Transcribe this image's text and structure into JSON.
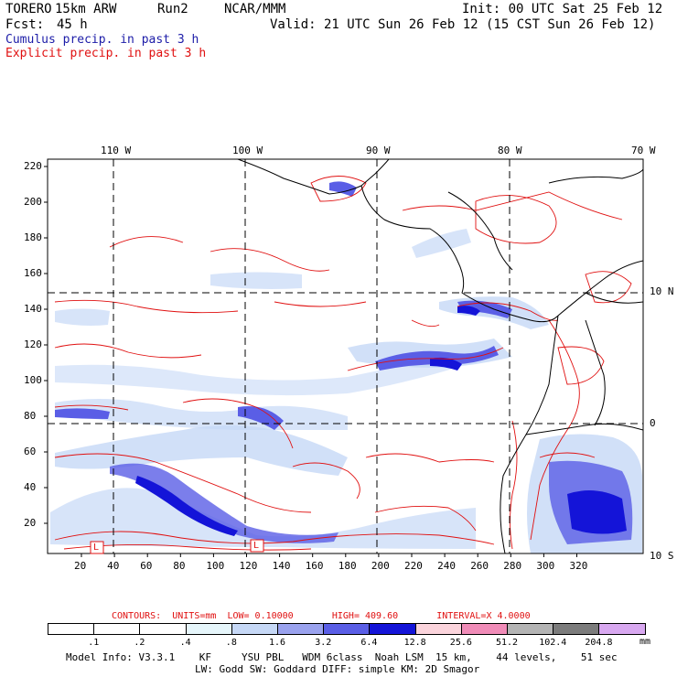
{
  "header": {
    "model": "TORERO",
    "resolution": "15km ARW",
    "run": "Run2",
    "org": "NCAR/MMM",
    "init": "Init: 00 UTC Sat 25 Feb 12",
    "fcst_label": "Fcst:",
    "fcst_value": "45 h",
    "valid": "Valid: 21 UTC Sun 26 Feb 12 (15 CST Sun 26 Feb 12)"
  },
  "legend": {
    "cumulus": "Cumulus precip. in past 3 h",
    "explicit": "Explicit precip. in past 3 h",
    "cumulus_color": "#1c1ca8",
    "explicit_color": "#e01010"
  },
  "axes": {
    "top_lon": [
      "110 W",
      "100 W",
      "90 W",
      "80 W",
      "70 W"
    ],
    "right_lat": [
      "10 N",
      "0",
      "10 S"
    ],
    "left_ticks": [
      "220",
      "200",
      "180",
      "160",
      "140",
      "120",
      "100",
      "80",
      "60",
      "40",
      "20"
    ],
    "bottom_ticks": [
      "20",
      "40",
      "60",
      "80",
      "100",
      "120",
      "140",
      "160",
      "180",
      "200",
      "220",
      "240",
      "260",
      "280",
      "300",
      "320"
    ],
    "point_labels": [
      "L",
      "L"
    ]
  },
  "contours": {
    "label": "CONTOURS:",
    "units": "UNITS=mm",
    "low": "LOW= 0.10000",
    "high": "HIGH= 409.60",
    "interval": "INTERVAL=X 4.0000"
  },
  "colorbar": {
    "unit": "mm",
    "labels": [
      ".1",
      ".2",
      ".4",
      ".8",
      "1.6",
      "3.2",
      "6.4",
      "12.8",
      "25.6",
      "51.2",
      "102.4",
      "204.8"
    ],
    "colors": [
      "#ffffff",
      "#ffffff",
      "#ffffff",
      "#e6f6fb",
      "#c6d8f6",
      "#9aa2ee",
      "#5a5ee6",
      "#1414d8",
      "#fbd4dc",
      "#f08cb8",
      "#b4b4b4",
      "#7c7c7c",
      "#d8a8f0"
    ]
  },
  "model_info": {
    "line1": "Model Info: V3.3.1    KF     YSU PBL   WDM 6class  Noah LSM  15 km,    44 levels,    51 sec",
    "line2": "LW: Godd SW: Goddard DIFF: simple KM: 2D Smagor"
  }
}
